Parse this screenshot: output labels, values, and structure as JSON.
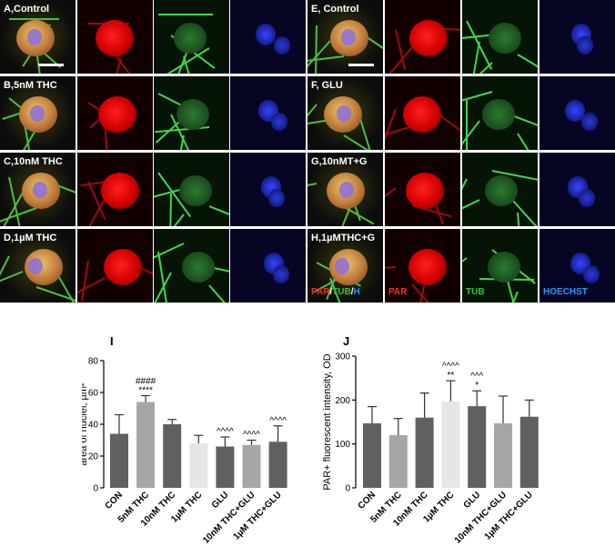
{
  "micrographs": {
    "left_labels": [
      "A,Control",
      "B,5nM THC",
      "C,10nM THC",
      "D,1µM THC"
    ],
    "right_labels": [
      "E, Control",
      "F, GLU",
      "G,10nMT+G",
      "H,1µMTHC+G"
    ],
    "channel_labels": {
      "merge_par": "PAR",
      "merge_sep1": "/",
      "merge_tub": "TUB",
      "merge_sep2": "/",
      "merge_h": "H",
      "par": "PAR",
      "tub": "TUB",
      "hoechst": "HOECHST"
    },
    "colors": {
      "red": "#e00000",
      "green": "#2ec83a",
      "blue": "#2a3cf0",
      "label_blue": "#1e9bff"
    }
  },
  "chart_data": [
    {
      "type": "bar",
      "panel_letter": "I",
      "categories": [
        "CON",
        "5nM THC",
        "10nM THC",
        "1µM THC",
        "GLU",
        "10nM THC+GLU",
        "1µM THC+GLU"
      ],
      "values": [
        34,
        54,
        40,
        28,
        26,
        27,
        29
      ],
      "errors": [
        12,
        4,
        3,
        5,
        6,
        3,
        10
      ],
      "annotations": [
        [],
        [
          "####",
          "****"
        ],
        [],
        [],
        [
          "^^^^"
        ],
        [
          "^^^^"
        ],
        [
          "^^^^"
        ]
      ],
      "bar_colors": [
        "#606060",
        "#a6a6a6",
        "#606060",
        "#e6e6e6",
        "#606060",
        "#a6a6a6",
        "#606060"
      ],
      "ylabel": "area of nuclei, µm²",
      "ylim": [
        0,
        80
      ],
      "yticks": [
        "0",
        "20",
        "40",
        "60",
        "80"
      ]
    },
    {
      "type": "bar",
      "panel_letter": "J",
      "categories": [
        "CON",
        "5nM THC",
        "10nM THC",
        "1µM THC",
        "GLU",
        "10nM THC+GLU",
        "1µM THC+GLU"
      ],
      "values": [
        147,
        120,
        160,
        197,
        186,
        147,
        162
      ],
      "errors": [
        38,
        38,
        56,
        47,
        35,
        62,
        38
      ],
      "annotations": [
        [],
        [],
        [],
        [
          "^^^^",
          "**"
        ],
        [
          "^^^",
          "*"
        ],
        [],
        []
      ],
      "bar_colors": [
        "#606060",
        "#a6a6a6",
        "#606060",
        "#e6e6e6",
        "#606060",
        "#a6a6a6",
        "#606060"
      ],
      "ylabel": "PAR+ fluorescent intensity, OD",
      "ylim": [
        0,
        300
      ],
      "yticks": [
        "0",
        "100",
        "200",
        "300"
      ]
    }
  ]
}
